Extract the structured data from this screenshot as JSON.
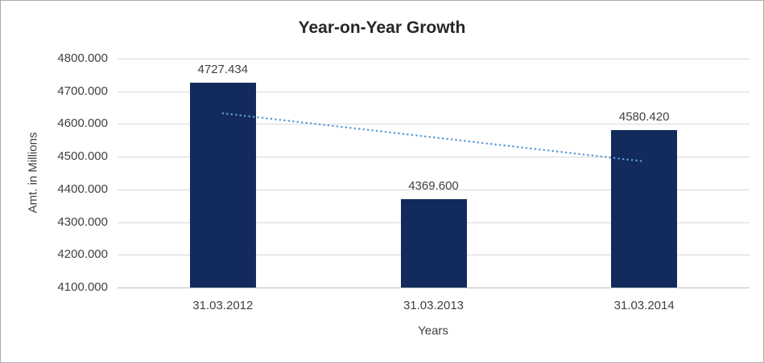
{
  "chart_data": {
    "type": "bar",
    "title": "Year-on-Year Growth",
    "xlabel": "Years",
    "ylabel": "Amt. in Millions",
    "categories": [
      "31.03.2012",
      "31.03.2013",
      "31.03.2014"
    ],
    "values": [
      4727.434,
      4369.6,
      4580.42
    ],
    "data_labels": [
      "4727.434",
      "4369.600",
      "4580.420"
    ],
    "ylim": [
      4100,
      4800
    ],
    "ytick_step": 100,
    "ytick_labels": [
      "4100.000",
      "4200.000",
      "4300.000",
      "4400.000",
      "4500.000",
      "4600.000",
      "4700.000",
      "4800.000"
    ],
    "grid": true,
    "legend": "none",
    "trendline": {
      "type": "linear",
      "style": "dotted",
      "start_value": 4632.7,
      "end_value": 4485.6
    },
    "colors": {
      "bar": "#122A5C",
      "trendline": "#5B9BD5",
      "gridline": "#D9D9D9",
      "axis_line": "#BFBFBF",
      "text": "#404040",
      "title_text": "#262626",
      "background": "#FFFFFF",
      "border": "#ABABAB"
    }
  }
}
